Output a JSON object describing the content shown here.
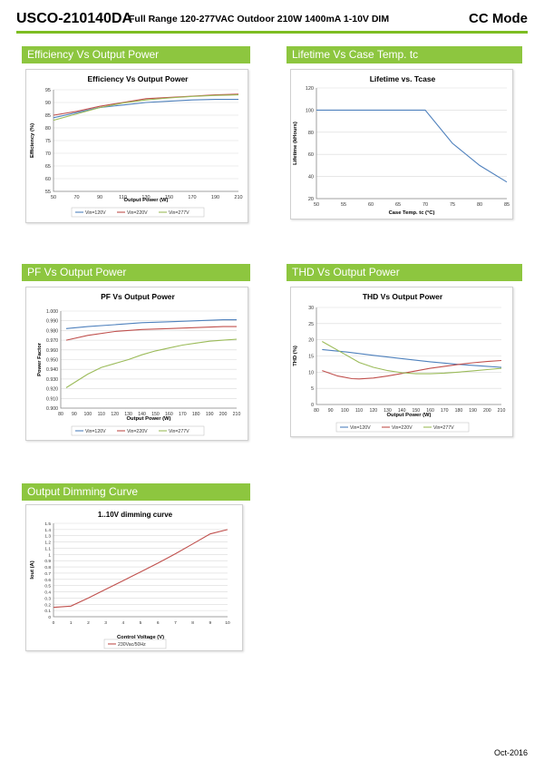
{
  "header": {
    "model": "USCO-210140DA",
    "subtitle": "Full Range 120-277VAC Outdoor 210W 1400mA 1-10V DIM",
    "mode": "CC Mode"
  },
  "sections": {
    "efficiency": "Efficiency Vs Output Power",
    "lifetime": "Lifetime Vs Case Temp. tc",
    "pf": "PF Vs Output Power",
    "thd": "THD Vs Output Power",
    "dimming": "Output Dimming Curve"
  },
  "footer": {
    "date": "Oct-2016"
  },
  "colors": {
    "accent": "#8dc63f",
    "vin120": "#4f81bd",
    "vin220": "#c0504d",
    "vin277": "#9bbb59"
  },
  "chart_data": [
    {
      "id": "efficiency",
      "type": "line",
      "title": "Efficiency Vs Output Power",
      "xlabel": "Output Power (W)",
      "ylabel": "Efficiency (%)",
      "xlim": [
        50,
        210
      ],
      "ylim": [
        55,
        95
      ],
      "xticks": [
        "50",
        "70",
        "90",
        "110",
        "130",
        "150",
        "170",
        "190",
        "210"
      ],
      "yticks": [
        "55",
        "60",
        "65",
        "70",
        "75",
        "80",
        "85",
        "90",
        "95"
      ],
      "series": [
        {
          "name": "Vin=120V",
          "color": "#4f81bd",
          "x": [
            50,
            70,
            90,
            110,
            130,
            150,
            170,
            190,
            210
          ],
          "y": [
            84,
            86,
            88,
            89,
            90,
            90.5,
            91,
            91.2,
            91.2
          ]
        },
        {
          "name": "Vin=220V",
          "color": "#c0504d",
          "x": [
            50,
            70,
            90,
            110,
            130,
            150,
            170,
            190,
            210
          ],
          "y": [
            85,
            86.5,
            88.5,
            90,
            91.5,
            92,
            92.5,
            93,
            93.3
          ]
        },
        {
          "name": "Vin=277V",
          "color": "#9bbb59",
          "x": [
            50,
            70,
            90,
            110,
            130,
            150,
            170,
            190,
            210
          ],
          "y": [
            83,
            85.5,
            88,
            89.8,
            91,
            91.8,
            92.4,
            92.8,
            93
          ]
        }
      ]
    },
    {
      "id": "lifetime",
      "type": "line",
      "title": "Lifetime vs. Tcase",
      "xlabel": "Case Temp. tc (°C)",
      "ylabel": "Lifetime (kHours)",
      "xlim": [
        50,
        85
      ],
      "ylim": [
        20,
        120
      ],
      "xticks": [
        "50",
        "55",
        "60",
        "65",
        "70",
        "75",
        "80",
        "85"
      ],
      "yticks": [
        "20",
        "40",
        "60",
        "80",
        "100",
        "120"
      ],
      "series": [
        {
          "color": "#4f81bd",
          "x": [
            50,
            55,
            60,
            65,
            70,
            75,
            80,
            85
          ],
          "y": [
            100,
            100,
            100,
            100,
            100,
            70,
            50,
            35
          ]
        }
      ]
    },
    {
      "id": "pf",
      "type": "line",
      "title": "PF Vs Output Power",
      "xlabel": "Output Power (W)",
      "ylabel": "Power Factor",
      "xlim": [
        80,
        210
      ],
      "ylim": [
        0.9,
        1.0
      ],
      "xticks": [
        "80",
        "90",
        "100",
        "110",
        "120",
        "130",
        "140",
        "150",
        "160",
        "170",
        "180",
        "190",
        "200",
        "210"
      ],
      "yticks": [
        "0.900",
        "0.910",
        "0.920",
        "0.930",
        "0.940",
        "0.950",
        "0.960",
        "0.970",
        "0.980",
        "0.990",
        "1.000"
      ],
      "series": [
        {
          "name": "Vin=120V",
          "color": "#4f81bd",
          "x": [
            84,
            100,
            120,
            140,
            160,
            180,
            200,
            210
          ],
          "y": [
            0.982,
            0.984,
            0.986,
            0.988,
            0.989,
            0.99,
            0.991,
            0.991
          ]
        },
        {
          "name": "Vin=220V",
          "color": "#c0504d",
          "x": [
            84,
            100,
            120,
            140,
            160,
            180,
            200,
            210
          ],
          "y": [
            0.97,
            0.975,
            0.979,
            0.981,
            0.982,
            0.983,
            0.984,
            0.984
          ]
        },
        {
          "name": "Vin=277V",
          "color": "#9bbb59",
          "x": [
            84,
            100,
            110,
            120,
            130,
            140,
            150,
            160,
            170,
            180,
            190,
            200,
            210
          ],
          "y": [
            0.921,
            0.935,
            0.942,
            0.946,
            0.95,
            0.955,
            0.959,
            0.962,
            0.965,
            0.967,
            0.969,
            0.97,
            0.971
          ]
        }
      ]
    },
    {
      "id": "thd",
      "type": "line",
      "title": "THD Vs Output Power",
      "xlabel": "Output Power (W)",
      "ylabel": "THD (%)",
      "xlim": [
        80,
        210
      ],
      "ylim": [
        0,
        30
      ],
      "xticks": [
        "80",
        "90",
        "100",
        "110",
        "120",
        "130",
        "140",
        "150",
        "160",
        "170",
        "180",
        "190",
        "200",
        "210"
      ],
      "yticks": [
        "0",
        "5",
        "10",
        "15",
        "20",
        "25",
        "30"
      ],
      "series": [
        {
          "name": "Vin=120V",
          "color": "#4f81bd",
          "x": [
            84,
            100,
            120,
            140,
            160,
            180,
            200,
            210
          ],
          "y": [
            17,
            16.3,
            15.2,
            14.2,
            13.2,
            12.4,
            11.8,
            11.5
          ]
        },
        {
          "name": "Vin=220V",
          "color": "#c0504d",
          "x": [
            84,
            95,
            105,
            110,
            120,
            130,
            140,
            150,
            160,
            170,
            180,
            190,
            200,
            210
          ],
          "y": [
            10.5,
            8.8,
            8,
            7.9,
            8.2,
            8.8,
            9.6,
            10.4,
            11.2,
            11.8,
            12.4,
            12.9,
            13.3,
            13.6
          ]
        },
        {
          "name": "Vin=277V",
          "color": "#9bbb59",
          "x": [
            84,
            100,
            110,
            120,
            130,
            140,
            150,
            160,
            170,
            180,
            190,
            200,
            210
          ],
          "y": [
            19.5,
            15.5,
            13,
            11.5,
            10.5,
            9.8,
            9.5,
            9.5,
            9.7,
            10,
            10.4,
            10.8,
            11.2
          ]
        }
      ]
    },
    {
      "id": "dimming",
      "type": "line",
      "title": "1..10V dimming curve",
      "xlabel": "Control Voltage (V)",
      "ylabel": "Iout (A)",
      "xlim": [
        0,
        10
      ],
      "ylim": [
        0,
        1.5
      ],
      "xticks": [
        "0",
        "1",
        "2",
        "3",
        "4",
        "5",
        "6",
        "7",
        "8",
        "9",
        "10"
      ],
      "yticks": [
        "0",
        "0.1",
        "0.2",
        "0.3",
        "0.4",
        "0.5",
        "0.6",
        "0.7",
        "0.8",
        "0.9",
        "1",
        "1.1",
        "1.2",
        "1.3",
        "1.4",
        "1.5"
      ],
      "series": [
        {
          "name": "230Vac/50Hz",
          "color": "#c0504d",
          "x": [
            0,
            1,
            2,
            3,
            4,
            5,
            6,
            7,
            8,
            9,
            10
          ],
          "y": [
            0.15,
            0.17,
            0.3,
            0.44,
            0.58,
            0.72,
            0.86,
            1.01,
            1.17,
            1.33,
            1.4
          ]
        }
      ]
    }
  ]
}
